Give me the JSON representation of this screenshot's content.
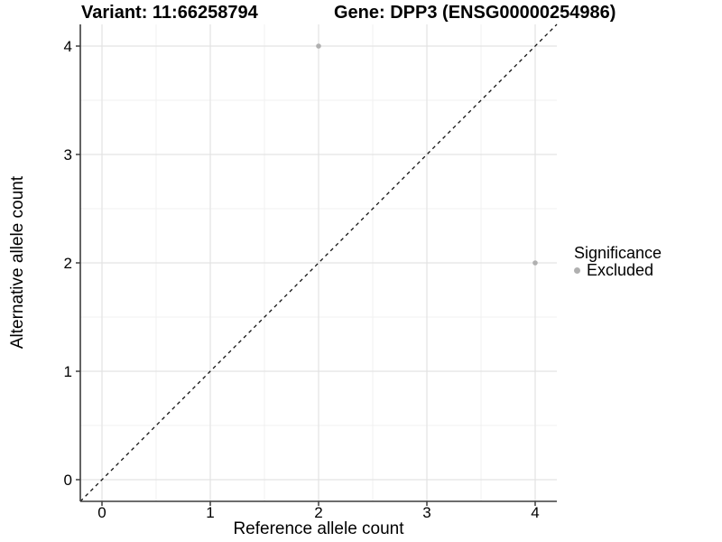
{
  "header": {
    "variant_title": "Variant: 11:66258794",
    "gene_title": "Gene: DPP3 (ENSG00000254986)"
  },
  "chart_data": {
    "type": "scatter",
    "title_left": "Variant: 11:66258794",
    "title_right": "Gene: DPP3 (ENSG00000254986)",
    "xlabel": "Reference allele count",
    "ylabel": "Alternative allele count",
    "xlim": [
      -0.2,
      4.2
    ],
    "ylim": [
      -0.2,
      4.2
    ],
    "x_ticks": [
      0,
      1,
      2,
      3,
      4
    ],
    "y_ticks": [
      0,
      1,
      2,
      3,
      4
    ],
    "x_minor_ticks": [
      0.5,
      1.5,
      2.5,
      3.5
    ],
    "y_minor_ticks": [
      0.5,
      1.5,
      2.5,
      3.5
    ],
    "grid": true,
    "legend_position": "right",
    "series": [
      {
        "name": "Excluded",
        "color": "#b0b0b0",
        "points": [
          {
            "x": 2,
            "y": 4
          },
          {
            "x": 4,
            "y": 2
          }
        ]
      }
    ],
    "reference_line": {
      "kind": "identity",
      "style": "dashed",
      "color": "#111111"
    }
  },
  "legend": {
    "title": "Significance",
    "entries": [
      {
        "label": "Excluded",
        "color": "#b0b0b0"
      }
    ]
  },
  "colors": {
    "background": "#ffffff",
    "axis_line": "#3d3d3d",
    "major_grid": "#e3e3e3",
    "minor_grid": "#f1f1f1",
    "point": "#b0b0b0",
    "text": "#000000"
  }
}
